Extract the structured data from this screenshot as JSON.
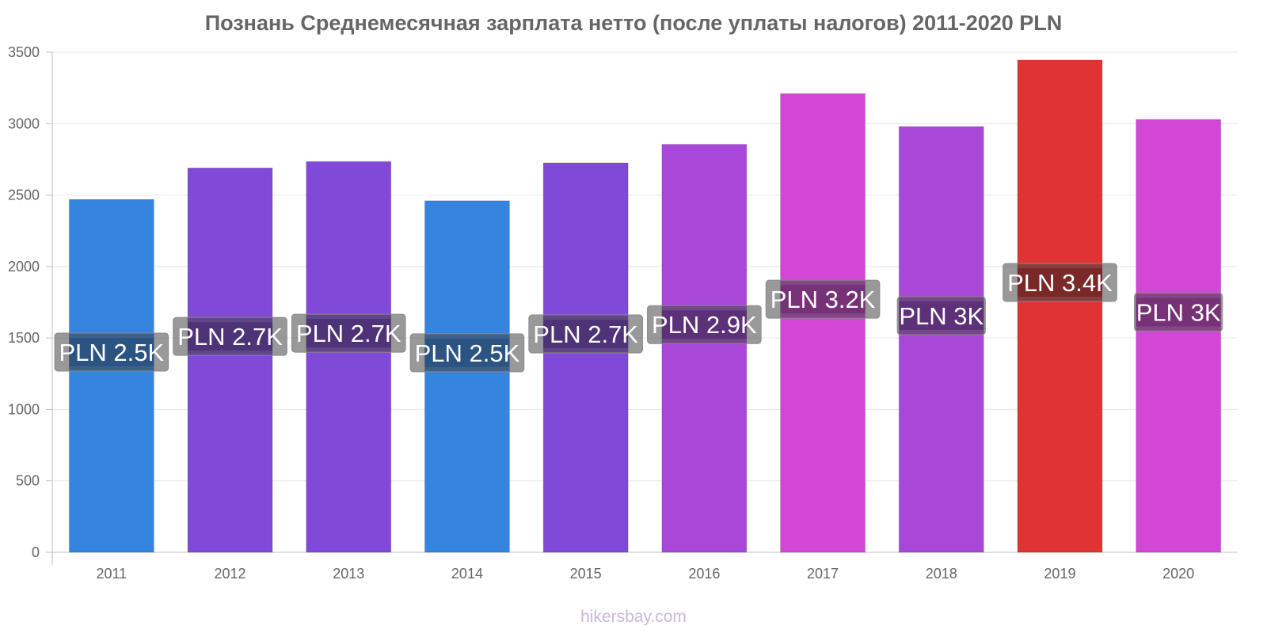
{
  "title": "Познань Среднемесячная зарплата нетто (после уплаты налогов) 2011-2020 PLN",
  "watermark": "hikersbay.com",
  "chart_data": {
    "type": "bar",
    "title": "Познань Среднемесячная зарплата нетто (после уплаты налогов) 2011-2020 PLN",
    "xlabel": "",
    "ylabel": "",
    "categories": [
      "2011",
      "2012",
      "2013",
      "2014",
      "2015",
      "2016",
      "2017",
      "2018",
      "2019",
      "2020"
    ],
    "values": [
      2470,
      2690,
      2735,
      2460,
      2725,
      2855,
      3210,
      2980,
      3445,
      3030
    ],
    "data_labels": [
      "PLN 2.5K",
      "PLN 2.7K",
      "PLN 2.7K",
      "PLN 2.5K",
      "PLN 2.7K",
      "PLN 2.9K",
      "PLN 3.2K",
      "PLN 3K",
      "PLN 3.4K",
      "PLN 3K"
    ],
    "colors": [
      "#3584e0",
      "#8049d8",
      "#8049d8",
      "#3584e0",
      "#8049d8",
      "#a847d8",
      "#d247d5",
      "#a847d8",
      "#e03434",
      "#d247d5"
    ],
    "label_colors": [
      "#1b4a7c",
      "#40226e",
      "#40226e",
      "#1b4a7c",
      "#40226e",
      "#4d2070",
      "#6b206b",
      "#4d2070",
      "#6e1818",
      "#6b206b"
    ],
    "ylim": [
      0,
      3500
    ],
    "yticks": [
      0,
      500,
      1000,
      1500,
      2000,
      2500,
      3000,
      3500
    ],
    "grid": true,
    "legend": "none"
  }
}
